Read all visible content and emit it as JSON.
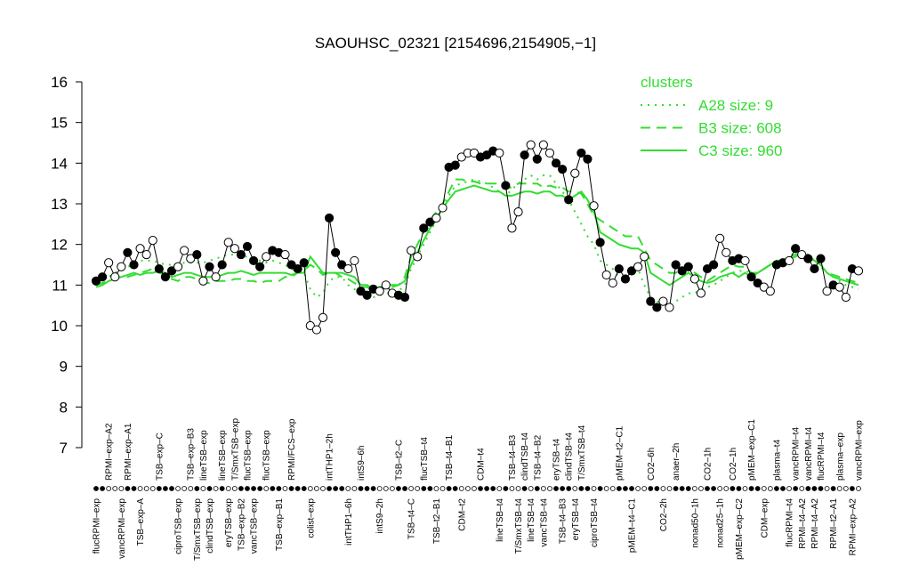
{
  "chart_data": {
    "type": "line",
    "title": "SAOUHSC_02321 [2154696,2154905,−1]",
    "ylim": [
      7,
      16
    ],
    "yticks": [
      7,
      8,
      9,
      10,
      11,
      12,
      13,
      14,
      15,
      16
    ],
    "line_color": "#000000",
    "legend_title": "clusters",
    "legend": "top-right",
    "categories": [
      "flucRPMI–exp",
      null,
      "RPMI–exp–A2",
      null,
      "vancRPMI–exp",
      "RPMI–exp–A1",
      null,
      "TSB–exp–A",
      null,
      null,
      "TSB–exp–C",
      null,
      null,
      "ciproTSB–exp",
      null,
      "TSB–exp–B3",
      "T/SmxTSB–exp",
      "lineTSB–exp",
      "clindTSB–exp",
      null,
      "lineTSB–exp",
      "eryTSB–exp",
      "T/SmxTSB–exp",
      "TSB–exp–B2",
      "flucTSB–exp",
      "vancTSB–exp",
      null,
      "flucTSB–exp",
      null,
      "TSB–exp–B1",
      null,
      "RPMI/FCS–exp",
      null,
      null,
      "colist–exp",
      null,
      null,
      "intTHP1–2h",
      null,
      null,
      "intTHP1–6h",
      null,
      "intS9–6h",
      null,
      null,
      "intS9–2h",
      null,
      null,
      "TSB–t2–C",
      null,
      "TSB–t4–C",
      null,
      "flucTSB–t4",
      null,
      "TSB–t2–B1",
      null,
      "TSB–t4–B1",
      null,
      "CDM–t2",
      null,
      null,
      "CDM–t4",
      null,
      null,
      "lineTSB–t4",
      null,
      "TSB–t4–B3",
      "T/SmxTSB–t4",
      "clindTSB–t4",
      "lineTSB–t4",
      "TSB–t4–B2",
      "vancTSB–t4",
      null,
      "eryTSB–t4",
      "TSB–t4–B3",
      "clindTSB–t4",
      "eryTSB–t4",
      "T/SmxTSB–t4",
      null,
      "ciproTSB–t4",
      null,
      null,
      null,
      "pMEM–t2–C1",
      null,
      "pMEM–t4–C1",
      null,
      null,
      "CO2–6h",
      null,
      "CO2–2h",
      null,
      "anaer–2h",
      null,
      null,
      "nonad50–1h",
      null,
      "CO2–1h",
      null,
      "nonad25–1h",
      null,
      "CO2–1h",
      "pMEM–exp–C2",
      null,
      "pMEM–exp–C1",
      null,
      "CDM–exp",
      null,
      "plasma–t4",
      null,
      "flucRPMI–t4",
      "vancRPMI–t4",
      "RPMI–t4–A2",
      "vancRPMI–t4",
      "RPMI–t4–A2",
      "flucRPMI–t4",
      null,
      "RPMI–t2–A1",
      "plasma–exp",
      null,
      "RPMI–exp–A2",
      "vancRPMI–exp"
    ],
    "values": [
      11.1,
      11.2,
      11.55,
      11.2,
      11.45,
      11.8,
      11.5,
      11.9,
      11.75,
      12.1,
      11.4,
      11.2,
      11.35,
      11.45,
      11.85,
      11.65,
      11.75,
      11.1,
      11.45,
      11.2,
      11.5,
      12.05,
      11.9,
      11.75,
      11.95,
      11.6,
      11.45,
      11.7,
      11.85,
      11.8,
      11.75,
      11.5,
      11.4,
      11.55,
      10.0,
      9.9,
      10.2,
      12.65,
      11.8,
      11.5,
      11.4,
      11.6,
      10.85,
      10.75,
      10.9,
      10.85,
      11.0,
      10.8,
      10.75,
      10.7,
      11.85,
      11.7,
      12.4,
      12.55,
      12.65,
      12.9,
      13.9,
      13.95,
      14.15,
      14.25,
      14.25,
      14.15,
      14.2,
      14.3,
      14.25,
      13.45,
      12.4,
      12.8,
      14.2,
      14.45,
      14.1,
      14.45,
      14.25,
      14.0,
      13.85,
      13.1,
      13.75,
      14.25,
      14.1,
      12.95,
      12.05,
      11.25,
      11.05,
      11.4,
      11.15,
      11.35,
      11.45,
      11.7,
      10.6,
      10.45,
      10.6,
      10.45,
      11.5,
      11.35,
      11.45,
      11.15,
      10.8,
      11.4,
      11.5,
      12.15,
      11.8,
      11.6,
      11.65,
      11.6,
      11.2,
      11.05,
      10.95,
      10.85,
      11.5,
      11.55,
      11.6,
      11.9,
      11.75,
      11.65,
      11.4,
      11.65,
      10.85,
      11.0,
      10.95,
      10.7,
      11.4,
      11.35
    ],
    "markers": [
      "#000000",
      "#000000",
      "#ffffff",
      "#ffffff",
      "#ffffff",
      "#000000",
      "#000000",
      "#ffffff",
      "#ffffff",
      "#ffffff",
      "#000000",
      "#000000",
      "#000000",
      "#ffffff",
      "#ffffff",
      "#ffffff",
      "#000000",
      "#ffffff",
      "#000000",
      "#ffffff",
      "#000000",
      "#ffffff",
      "#ffffff",
      "#000000",
      "#000000",
      "#000000",
      "#000000",
      "#ffffff",
      "#000000",
      "#000000",
      "#ffffff",
      "#000000",
      "#000000",
      "#000000",
      "#ffffff",
      "#ffffff",
      "#ffffff",
      "#000000",
      "#000000",
      "#000000",
      "#ffffff",
      "#ffffff",
      "#000000",
      "#000000",
      "#000000",
      "#ffffff",
      "#ffffff",
      "#ffffff",
      "#000000",
      "#000000",
      "#ffffff",
      "#ffffff",
      "#000000",
      "#000000",
      "#ffffff",
      "#ffffff",
      "#000000",
      "#000000",
      "#ffffff",
      "#ffffff",
      "#ffffff",
      "#000000",
      "#000000",
      "#000000",
      "#ffffff",
      "#000000",
      "#ffffff",
      "#ffffff",
      "#000000",
      "#ffffff",
      "#000000",
      "#ffffff",
      "#ffffff",
      "#000000",
      "#000000",
      "#000000",
      "#ffffff",
      "#000000",
      "#000000",
      "#ffffff",
      "#000000",
      "#ffffff",
      "#ffffff",
      "#000000",
      "#000000",
      "#000000",
      "#ffffff",
      "#ffffff",
      "#000000",
      "#000000",
      "#ffffff",
      "#ffffff",
      "#000000",
      "#000000",
      "#000000",
      "#ffffff",
      "#ffffff",
      "#000000",
      "#000000",
      "#ffffff",
      "#ffffff",
      "#000000",
      "#000000",
      "#ffffff",
      "#000000",
      "#000000",
      "#ffffff",
      "#ffffff",
      "#000000",
      "#000000",
      "#ffffff",
      "#000000",
      "#ffffff",
      "#000000",
      "#000000",
      "#000000",
      "#ffffff",
      "#000000",
      "#ffffff",
      "#ffffff",
      "#000000",
      "#ffffff"
    ],
    "clusters": [
      {
        "name": "A28 size: 9",
        "color": "#33dd33",
        "style": "dotted",
        "values": [
          11.1,
          11.15,
          11.2,
          11.3,
          11.4,
          11.45,
          11.5,
          11.6,
          11.6,
          11.6,
          11.55,
          11.5,
          11.5,
          11.5,
          11.55,
          11.55,
          11.55,
          11.55,
          11.6,
          11.65,
          11.7,
          11.75,
          11.75,
          11.7,
          11.7,
          11.65,
          11.6,
          11.55,
          11.6,
          11.55,
          11.5,
          11.4,
          11.35,
          11.3,
          10.9,
          10.7,
          10.8,
          11.1,
          11.2,
          11.2,
          11.0,
          10.9,
          10.8,
          10.75,
          10.7,
          10.75,
          10.8,
          10.8,
          10.85,
          11.0,
          11.4,
          11.7,
          12.0,
          12.3,
          12.6,
          12.9,
          13.2,
          13.45,
          13.5,
          13.55,
          13.6,
          13.55,
          13.5,
          13.4,
          13.3,
          13.2,
          13.35,
          13.5,
          13.6,
          13.7,
          13.6,
          13.7,
          13.7,
          13.5,
          13.3,
          13.1,
          12.8,
          12.5,
          12.2,
          12.0,
          11.6,
          11.5,
          11.4,
          11.2,
          11.2,
          11.3,
          11.4,
          11.0,
          10.7,
          10.6,
          10.55,
          10.5,
          10.6,
          10.7,
          10.8,
          10.8,
          10.9,
          10.95,
          11.0,
          11.1,
          11.2,
          11.3,
          11.35,
          11.35,
          11.3,
          11.3,
          11.4,
          11.5,
          11.55,
          11.6,
          11.7,
          11.8,
          11.75,
          11.7,
          11.6,
          11.45,
          11.3,
          11.2,
          11.1,
          11.0,
          10.95,
          10.9
        ]
      },
      {
        "name": "B3 size: 608",
        "color": "#33dd33",
        "style": "dashed",
        "values": [
          11.0,
          11.05,
          11.1,
          11.15,
          11.2,
          11.2,
          11.25,
          11.3,
          11.35,
          11.4,
          11.3,
          11.25,
          11.15,
          11.1,
          11.2,
          11.2,
          11.15,
          11.05,
          11.05,
          11.1,
          11.1,
          11.1,
          11.15,
          11.15,
          11.1,
          11.1,
          11.05,
          11.1,
          11.1,
          11.1,
          11.2,
          11.2,
          11.3,
          11.35,
          11.5,
          11.4,
          11.25,
          11.3,
          11.3,
          11.2,
          11.15,
          11.05,
          10.95,
          10.95,
          10.85,
          10.9,
          10.95,
          10.95,
          11.0,
          11.2,
          11.7,
          12.0,
          12.3,
          12.6,
          12.8,
          13.0,
          13.3,
          13.6,
          13.6,
          13.55,
          13.55,
          13.5,
          13.5,
          13.5,
          13.5,
          13.4,
          13.4,
          13.5,
          13.5,
          13.5,
          13.5,
          13.4,
          13.45,
          13.4,
          13.4,
          13.3,
          13.3,
          13.25,
          13.0,
          12.7,
          12.6,
          12.5,
          12.4,
          12.3,
          12.2,
          12.2,
          12.2,
          11.9,
          11.6,
          11.5,
          11.4,
          11.3,
          11.3,
          11.4,
          11.5,
          11.3,
          11.2,
          11.1,
          11.2,
          11.3,
          11.4,
          11.5,
          11.45,
          11.45,
          11.3,
          11.3,
          11.4,
          11.5,
          11.55,
          11.6,
          11.7,
          11.75,
          11.8,
          11.75,
          11.6,
          11.5,
          11.3,
          11.25,
          11.2,
          11.15,
          11.1,
          11.05
        ]
      },
      {
        "name": "C3 size: 960",
        "color": "#33dd33",
        "style": "solid",
        "values": [
          10.95,
          11.0,
          11.1,
          11.15,
          11.2,
          11.25,
          11.3,
          11.25,
          11.3,
          11.3,
          11.35,
          11.3,
          11.2,
          11.25,
          11.3,
          11.3,
          11.25,
          11.2,
          11.2,
          11.2,
          11.25,
          11.3,
          11.3,
          11.35,
          11.3,
          11.25,
          11.3,
          11.3,
          11.3,
          11.3,
          11.3,
          11.25,
          11.3,
          11.3,
          11.7,
          11.5,
          11.3,
          11.3,
          11.3,
          11.3,
          11.25,
          11.2,
          11.0,
          11.0,
          10.9,
          10.95,
          11.0,
          11.0,
          11.0,
          11.1,
          11.5,
          11.8,
          12.1,
          12.4,
          12.6,
          12.9,
          13.1,
          13.3,
          13.35,
          13.4,
          13.45,
          13.4,
          13.35,
          13.3,
          13.3,
          13.2,
          13.2,
          13.25,
          13.3,
          13.3,
          13.25,
          13.3,
          13.3,
          13.2,
          13.2,
          13.1,
          13.2,
          13.3,
          13.1,
          12.8,
          12.3,
          12.2,
          12.1,
          12.0,
          11.95,
          11.9,
          11.9,
          11.8,
          11.3,
          11.2,
          11.1,
          11.0,
          11.1,
          11.2,
          11.3,
          11.2,
          11.1,
          11.05,
          11.1,
          11.2,
          11.25,
          11.3,
          11.2,
          11.3,
          11.2,
          11.3,
          11.4,
          11.5,
          11.6,
          11.6,
          11.65,
          11.7,
          11.8,
          11.7,
          11.6,
          11.5,
          11.3,
          11.2,
          11.15,
          11.1,
          11.05,
          11.0
        ]
      }
    ]
  }
}
